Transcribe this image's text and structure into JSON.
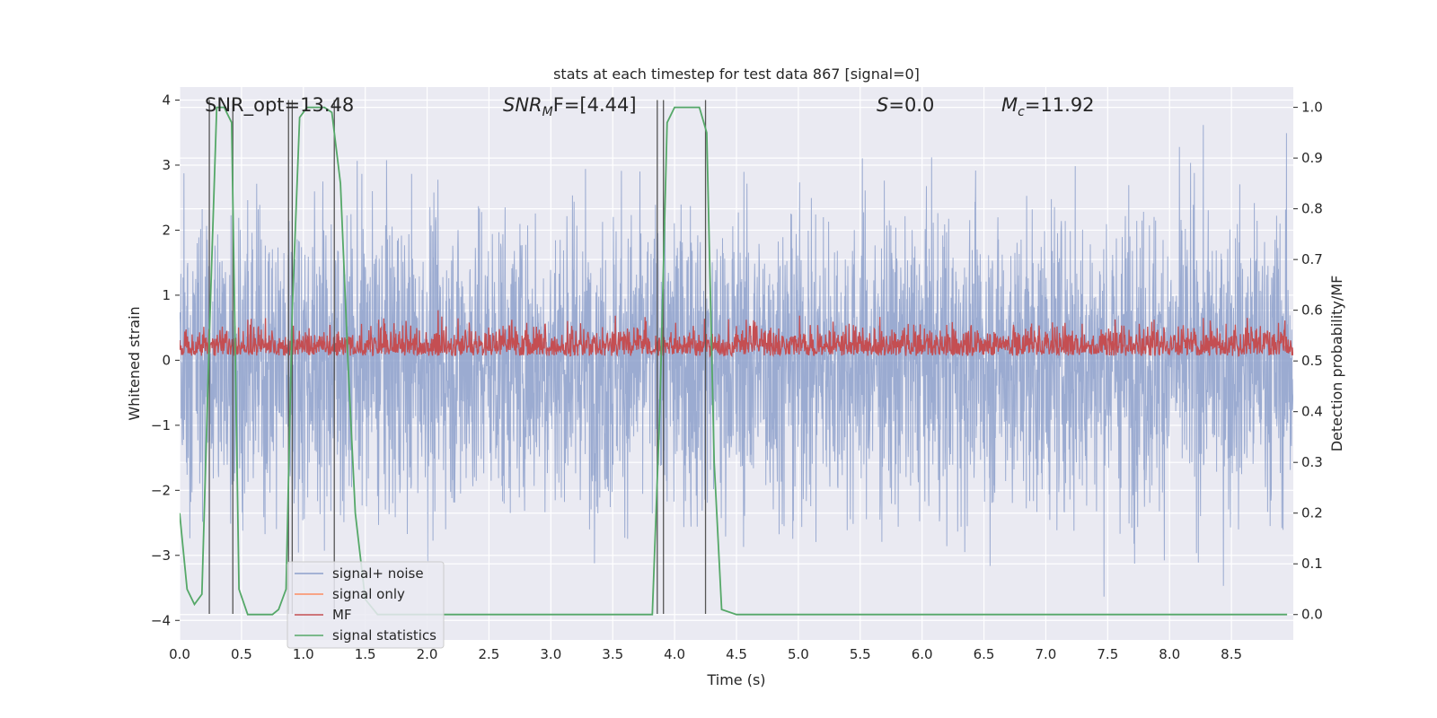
{
  "chart_data": {
    "type": "line",
    "title": "stats at each timestep for test data 867 [signal=0]",
    "xlabel": "Time (s)",
    "ylabel_left": "Whitened strain",
    "ylabel_right": "Detection probability/MF",
    "xlim": [
      0.0,
      9.0
    ],
    "ylim_left": [
      -4.3,
      4.2
    ],
    "ylim_right": [
      -0.05,
      1.04
    ],
    "x_ticks": [
      "0.0",
      "0.5",
      "1.0",
      "1.5",
      "2.0",
      "2.5",
      "3.0",
      "3.5",
      "4.0",
      "4.5",
      "5.0",
      "5.5",
      "6.0",
      "6.5",
      "7.0",
      "7.5",
      "8.0",
      "8.5"
    ],
    "y_ticks_left": [
      "4",
      "3",
      "2",
      "1",
      "0",
      "−1",
      "−2",
      "−3",
      "−4"
    ],
    "y_ticks_right": [
      "1.0",
      "0.9",
      "0.8",
      "0.7",
      "0.6",
      "0.5",
      "0.4",
      "0.3",
      "0.2",
      "0.1",
      "0.0"
    ],
    "grid": true,
    "legend_position": "bottom-left",
    "annotations": {
      "snr_opt": "SNR_opt=13.48",
      "snr_mf_main": "SNR",
      "snr_mf_sub": "M",
      "snr_mf_rest": "F=[4.44]",
      "s_var": "S",
      "s_rest": "=0.0",
      "mc_var": "M",
      "mc_sub": "c",
      "mc_rest": "=11.92"
    },
    "vertical_lines_x": [
      0.24,
      0.43,
      0.88,
      0.91,
      1.25,
      3.86,
      3.91,
      4.25
    ],
    "series": [
      {
        "name": "signal+ noise",
        "color": "#8da0cb",
        "axis": "left",
        "description": "noisy whitened strain, roughly within -3.9 to 3.9 across 0-9 s"
      },
      {
        "name": "signal only",
        "color": "#fc8d62",
        "axis": "left",
        "values": []
      },
      {
        "name": "MF",
        "color": "#c44e52",
        "axis": "right",
        "description": "matched filter output fluctuating between about 0.50 and 0.62"
      },
      {
        "name": "signal statistics",
        "color": "#55a868",
        "axis": "right",
        "x": [
          0.0,
          0.06,
          0.12,
          0.18,
          0.24,
          0.3,
          0.36,
          0.42,
          0.48,
          0.55,
          0.65,
          0.75,
          0.8,
          0.86,
          0.91,
          0.97,
          1.03,
          1.1,
          1.17,
          1.23,
          1.3,
          1.36,
          1.42,
          1.5,
          1.6,
          1.8,
          2.0,
          3.0,
          3.6,
          3.82,
          3.88,
          3.94,
          4.0,
          4.1,
          4.2,
          4.26,
          4.32,
          4.38,
          4.5,
          5.0,
          6.0,
          7.0,
          8.0,
          8.95
        ],
        "y": [
          0.2,
          0.05,
          0.02,
          0.04,
          0.55,
          1.0,
          1.0,
          0.97,
          0.05,
          0.0,
          0.0,
          0.0,
          0.01,
          0.05,
          0.6,
          0.98,
          1.0,
          1.0,
          1.0,
          0.99,
          0.85,
          0.5,
          0.2,
          0.03,
          0.0,
          0.0,
          0.0,
          0.0,
          0.0,
          0.0,
          0.4,
          0.97,
          1.0,
          1.0,
          1.0,
          0.95,
          0.3,
          0.01,
          0.0,
          0.0,
          0.0,
          0.0,
          0.0,
          0.0
        ]
      }
    ]
  }
}
